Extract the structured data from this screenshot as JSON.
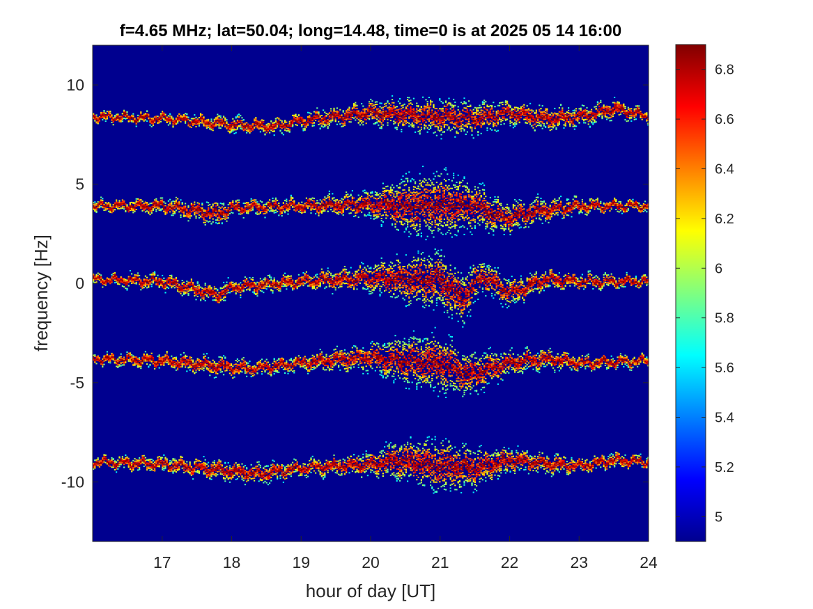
{
  "chart_data": {
    "type": "heatmap",
    "title": "f=4.65 MHz;  lat=50.04; long=14.48, time=0 is at 2025 05 14 16:00",
    "xlabel": "hour of day [UT]",
    "ylabel": "frequency [Hz]",
    "xlim": [
      16,
      24
    ],
    "ylim": [
      -13,
      12
    ],
    "x_ticks": [
      17,
      18,
      19,
      20,
      21,
      22,
      23,
      24
    ],
    "x_tick_labels": [
      "17",
      "18",
      "19",
      "20",
      "21",
      "22",
      "23",
      "24"
    ],
    "y_ticks": [
      -10,
      -5,
      0,
      5,
      10
    ],
    "y_tick_labels": [
      "-10",
      "-5",
      "0",
      "5",
      "10"
    ],
    "colormap": "jet",
    "background_color": "#00008f",
    "colorbar": {
      "clim": [
        4.9,
        6.9
      ],
      "ticks": [
        5,
        5.2,
        5.4,
        5.6,
        5.8,
        6,
        6.2,
        6.4,
        6.6,
        6.8
      ],
      "tick_labels": [
        "5",
        "5.2",
        "5.4",
        "5.6",
        "5.8",
        "6",
        "6.2",
        "6.4",
        "6.6",
        "6.8"
      ]
    },
    "traces": [
      {
        "name": "",
        "base_freq": 8.4,
        "x": [
          16,
          17,
          18,
          18.6,
          19,
          20,
          20.5,
          21,
          21.5,
          22,
          22.5,
          23,
          23.5,
          24
        ],
        "y": [
          8.4,
          8.3,
          8.0,
          7.9,
          8.2,
          8.6,
          8.5,
          8.4,
          8.3,
          8.6,
          8.3,
          8.4,
          8.8,
          8.4
        ],
        "spread": [
          0.2,
          0.2,
          0.3,
          0.3,
          0.3,
          0.5,
          0.7,
          0.8,
          0.7,
          0.5,
          0.5,
          0.4,
          0.4,
          0.2
        ]
      },
      {
        "name": "",
        "base_freq": 3.9,
        "x": [
          16,
          17,
          17.8,
          18,
          19,
          20,
          20.5,
          21,
          21.5,
          21.9,
          22.5,
          23,
          24
        ],
        "y": [
          3.9,
          3.9,
          3.5,
          3.8,
          3.9,
          4.0,
          3.9,
          4.0,
          3.9,
          3.3,
          3.7,
          3.9,
          3.9
        ],
        "spread": [
          0.2,
          0.3,
          0.5,
          0.3,
          0.3,
          0.6,
          1.3,
          1.5,
          1.0,
          0.7,
          0.5,
          0.3,
          0.2
        ]
      },
      {
        "name": "",
        "base_freq": 0.2,
        "x": [
          16,
          17,
          17.8,
          18,
          19,
          20,
          20.5,
          21,
          21.3,
          21.6,
          22,
          22.5,
          23,
          24
        ],
        "y": [
          0.2,
          0.1,
          -0.6,
          -0.2,
          0.1,
          0.3,
          0.2,
          0.2,
          -0.8,
          0.4,
          -0.5,
          0.2,
          0.1,
          0.1
        ],
        "spread": [
          0.2,
          0.3,
          0.4,
          0.3,
          0.3,
          0.6,
          1.1,
          1.3,
          1.2,
          0.7,
          0.6,
          0.4,
          0.3,
          0.2
        ]
      },
      {
        "name": "",
        "base_freq": -3.8,
        "x": [
          16,
          17,
          17.9,
          18.3,
          19,
          20,
          20.5,
          21,
          21.4,
          22,
          22.5,
          23,
          24
        ],
        "y": [
          -3.8,
          -3.9,
          -4.2,
          -4.3,
          -4.0,
          -3.7,
          -3.9,
          -4.0,
          -4.6,
          -4.0,
          -3.8,
          -4.0,
          -3.9
        ],
        "spread": [
          0.2,
          0.3,
          0.4,
          0.3,
          0.3,
          0.6,
          1.1,
          1.3,
          1.0,
          0.5,
          0.4,
          0.3,
          0.2
        ]
      },
      {
        "name": "",
        "base_freq": -9.0,
        "x": [
          16,
          17,
          17.8,
          18.4,
          19,
          20,
          20.4,
          21,
          21.5,
          22,
          22.6,
          23,
          23.5,
          24
        ],
        "y": [
          -9.0,
          -9.1,
          -9.4,
          -9.6,
          -9.3,
          -9.1,
          -8.9,
          -9.2,
          -9.3,
          -8.9,
          -9.1,
          -9.2,
          -8.9,
          -9.0
        ],
        "spread": [
          0.2,
          0.3,
          0.4,
          0.4,
          0.3,
          0.5,
          0.9,
          1.2,
          0.9,
          0.5,
          0.4,
          0.3,
          0.3,
          0.2
        ]
      }
    ]
  }
}
